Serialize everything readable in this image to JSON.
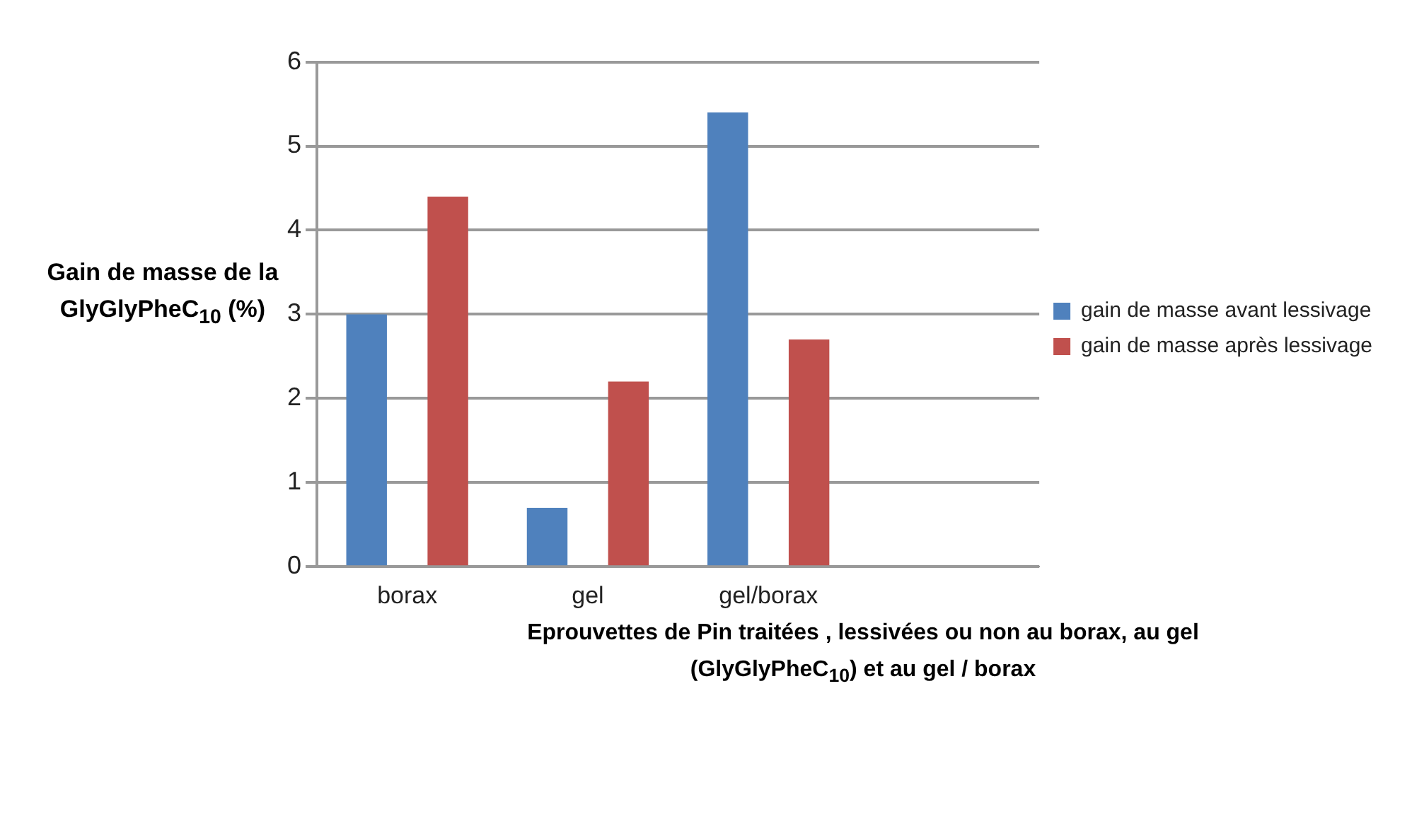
{
  "chart_data": {
    "type": "bar",
    "xlabel": "Eprouvettes de Pin traitées , lessivées ou non au borax, au gel (GlyGlyPheC$_{10}$) et au gel / borax",
    "ylabel": "Gain de masse de la GlyGlyPheC$_{10}$ (%)",
    "categories": [
      "borax",
      "gel",
      "gel/borax",
      null
    ],
    "series": [
      {
        "name": "gain de masse avant lessivage",
        "color": "#4f81bd",
        "values": [
          3.0,
          0.7,
          5.4,
          null
        ]
      },
      {
        "name": "gain de masse après lessivage",
        "color": "#c0504d",
        "values": [
          4.4,
          2.2,
          2.7,
          null
        ]
      }
    ],
    "ylim": [
      0,
      6
    ],
    "yticks": [
      0,
      1,
      2,
      3,
      4,
      5,
      6
    ],
    "grid": "y",
    "legend": "right"
  }
}
